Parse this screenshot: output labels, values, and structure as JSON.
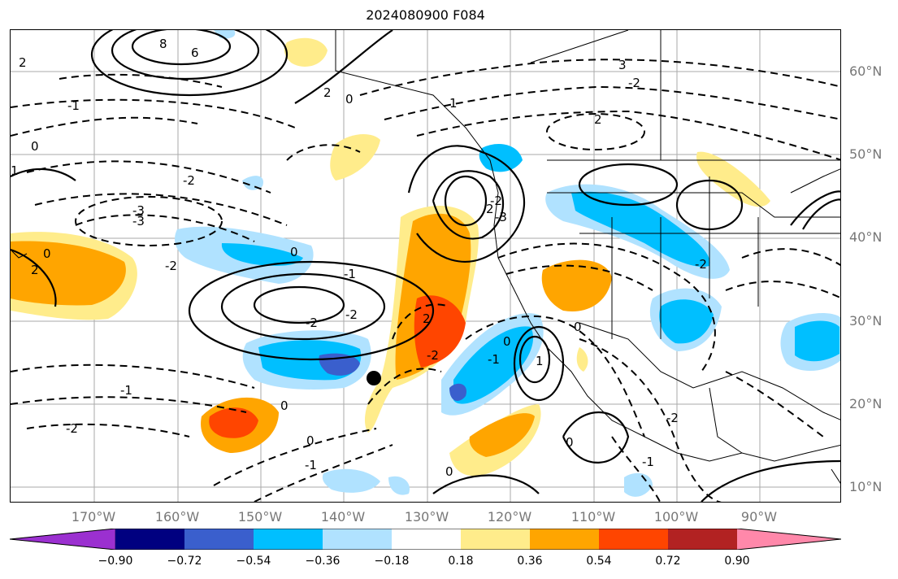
{
  "title": "2024080900 F084",
  "lat_labels": [
    "60°N",
    "50°N",
    "40°N",
    "30°N",
    "20°N",
    "10°N"
  ],
  "lon_labels": [
    "170°W",
    "160°W",
    "150°W",
    "140°W",
    "130°W",
    "120°W",
    "110°W",
    "100°W",
    "90°W"
  ],
  "colorbar": {
    "ticks": [
      "−0.90",
      "−0.72",
      "−0.54",
      "−0.36",
      "−0.18",
      "0.18",
      "0.36",
      "0.54",
      "0.72",
      "0.90"
    ],
    "colors": [
      "#9b30d0",
      "#000080",
      "#3a5fcd",
      "#00bfff",
      "#b0e2ff",
      "#ffffff",
      "#ffec8b",
      "#ffa500",
      "#ff4500",
      "#b22222",
      "#ff88aa"
    ]
  },
  "contour_labels": [
    "8",
    "6",
    "2",
    "0",
    "-1",
    "-2",
    "-3",
    "1",
    "2",
    "0",
    "-1",
    "-2",
    "-3",
    "-2",
    "2",
    "1",
    "0",
    "-2",
    "-2",
    "0",
    "2",
    "-1",
    "-2",
    "0",
    "0",
    "-1",
    "0",
    "-1",
    "1",
    "0",
    "0",
    "-2",
    "2",
    "3",
    "-2",
    "-1",
    "-2",
    "2",
    "-3",
    "-2",
    "0"
  ],
  "marker": "storm-center"
}
